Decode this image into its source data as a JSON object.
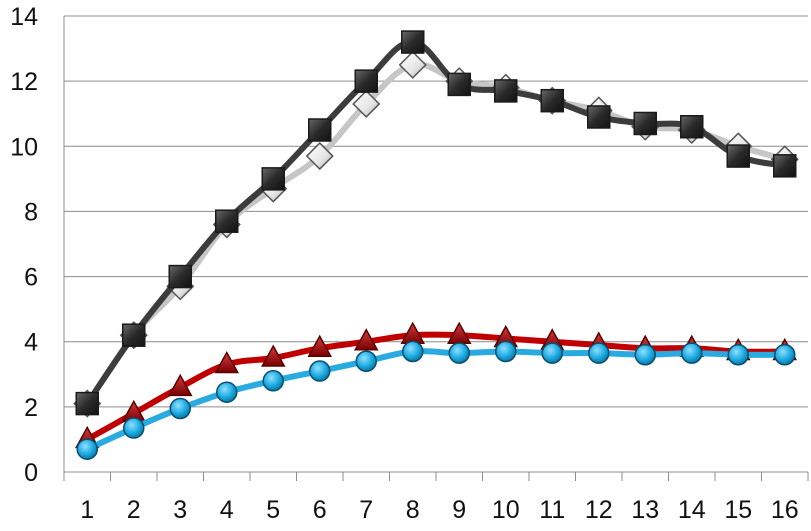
{
  "chart_data": {
    "type": "line",
    "title": "",
    "xlabel": "",
    "ylabel": "",
    "grid": "horizontal",
    "legend": "none",
    "x": [
      1,
      2,
      3,
      4,
      5,
      6,
      7,
      8,
      9,
      10,
      11,
      12,
      13,
      14,
      15,
      16
    ],
    "xticks": [
      "1",
      "2",
      "3",
      "4",
      "5",
      "6",
      "7",
      "8",
      "9",
      "10",
      "11",
      "12",
      "13",
      "14",
      "15",
      "16"
    ],
    "ylim": [
      0,
      14
    ],
    "yticks": [
      "0",
      "2",
      "4",
      "6",
      "8",
      "10",
      "12",
      "14"
    ],
    "series": [
      {
        "marker": "diamond",
        "color": "#c6c6c6",
        "marker_color": "#f0f0f0",
        "values": [
          2.1,
          4.2,
          5.7,
          7.6,
          8.7,
          9.7,
          11.3,
          12.5,
          12.0,
          11.8,
          11.4,
          11.1,
          10.6,
          10.5,
          10.0,
          9.6
        ]
      },
      {
        "marker": "square",
        "color": "#3c3c3c",
        "marker_color": "#2a2a2a",
        "values": [
          2.1,
          4.2,
          6.0,
          7.7,
          9.0,
          10.5,
          12.0,
          13.2,
          11.9,
          11.7,
          11.4,
          10.9,
          10.7,
          10.6,
          9.7,
          9.4
        ]
      },
      {
        "marker": "triangle",
        "color": "#c00000",
        "marker_color": "#8b0000",
        "values": [
          1.0,
          1.8,
          2.6,
          3.3,
          3.5,
          3.8,
          4.0,
          4.2,
          4.2,
          4.1,
          4.0,
          3.9,
          3.8,
          3.8,
          3.7,
          3.7
        ]
      },
      {
        "marker": "circle",
        "color": "#29abe2",
        "marker_color": "#18a8e0",
        "values": [
          0.7,
          1.35,
          1.95,
          2.45,
          2.8,
          3.1,
          3.4,
          3.7,
          3.65,
          3.7,
          3.65,
          3.65,
          3.6,
          3.65,
          3.6,
          3.6
        ]
      }
    ]
  }
}
